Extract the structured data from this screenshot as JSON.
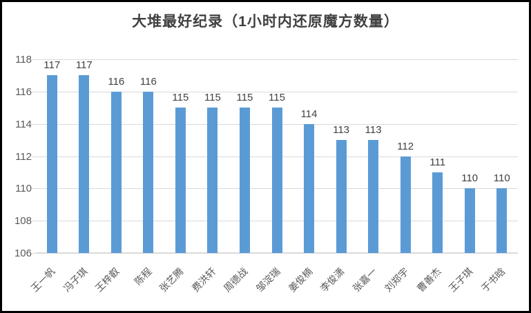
{
  "chart_data": {
    "type": "bar",
    "title": "大堆最好纪录（1小时内还原魔方数量）",
    "categories": [
      "王一帆",
      "冯子琪",
      "王梓叡",
      "陈程",
      "张艺腾",
      "费洪轩",
      "周德战",
      "邹淀瑞",
      "姜俊楠",
      "李俊潇",
      "张嘉一",
      "刘郑宇",
      "曹善杰",
      "王子琪",
      "于书晗"
    ],
    "values": [
      117,
      117,
      116,
      116,
      115,
      115,
      115,
      115,
      114,
      113,
      113,
      112,
      111,
      110,
      110
    ],
    "xlabel": "",
    "ylabel": "",
    "ylim": [
      106,
      118
    ],
    "yticks": [
      106,
      108,
      110,
      112,
      114,
      116,
      118
    ],
    "grid": true,
    "legend_position": "none",
    "data_labels": true,
    "colors": {
      "bar": "#5b9bd5",
      "gridline": "#d9d9d9",
      "title_text": "#404040",
      "value_label_text": "#404040",
      "axis_label_text": "#595959",
      "frame_border": "#000000"
    }
  }
}
